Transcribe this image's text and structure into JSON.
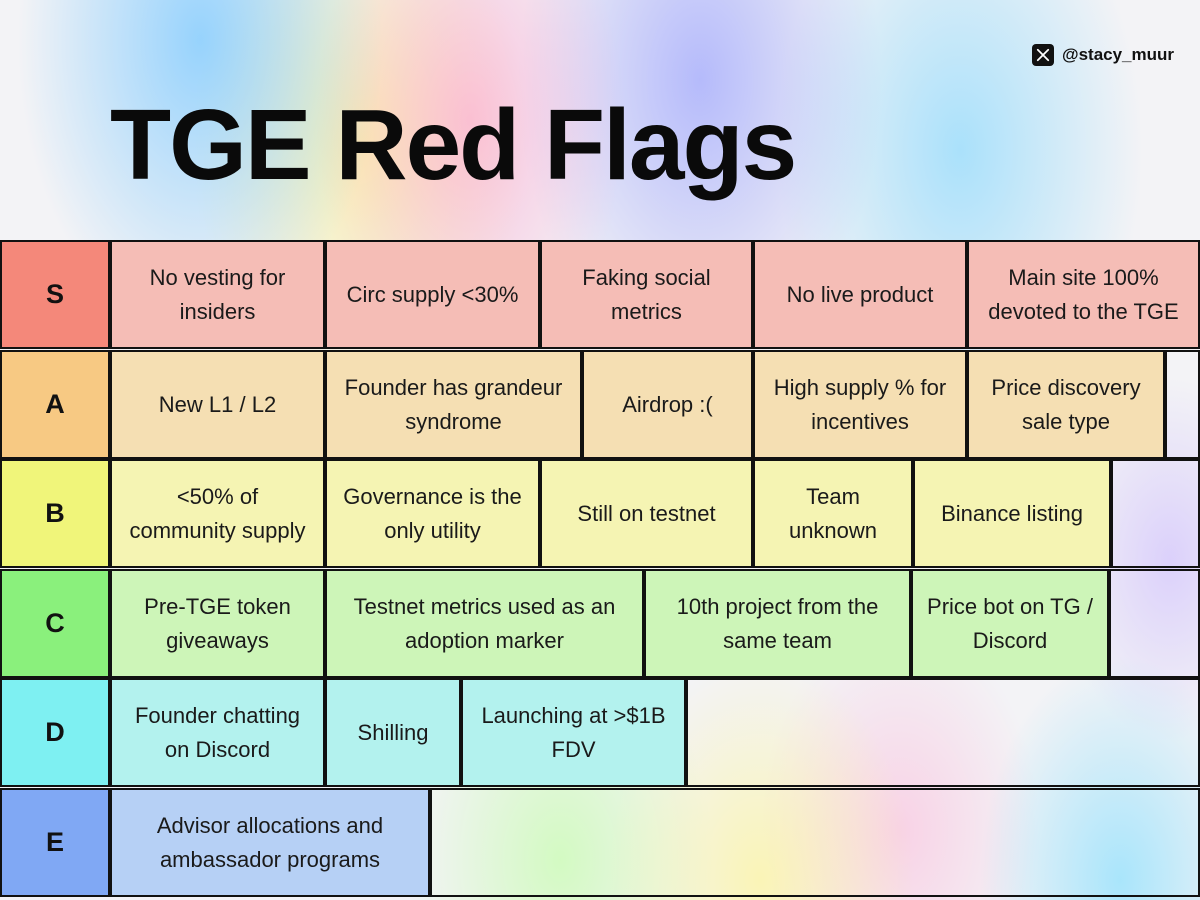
{
  "handle": {
    "icon": "x-logo-icon",
    "text": "@stacy_muur"
  },
  "title": "TGE Red Flags",
  "tiers": [
    {
      "label": "S",
      "label_color": "#f4887a",
      "cell_color": "#f5bdb6",
      "items": [
        "No vesting for insiders",
        "Circ supply <30%",
        "Faking social metrics",
        "No live product",
        "Main site 100% devoted to the TGE"
      ]
    },
    {
      "label": "A",
      "label_color": "#f7c983",
      "cell_color": "#f5dfb3",
      "items": [
        "New L1 / L2",
        "Founder has grandeur syndrome",
        "Airdrop :(",
        "High supply % for incentives",
        "Price discovery sale type"
      ]
    },
    {
      "label": "B",
      "label_color": "#f0f57a",
      "cell_color": "#f5f4b3",
      "items": [
        "<50% of community supply",
        "Governance is the only utility",
        "Still on testnet",
        "Team unknown",
        "Binance listing"
      ]
    },
    {
      "label": "C",
      "label_color": "#8af07c",
      "cell_color": "#cdf5b8",
      "items": [
        "Pre-TGE token giveaways",
        "Testnet metrics used as an adoption marker",
        "10th project from the same team",
        "Price bot on TG / Discord"
      ]
    },
    {
      "label": "D",
      "label_color": "#7ef0f2",
      "cell_color": "#b3f2ee",
      "items": [
        "Founder chatting on Discord",
        "Shilling",
        "Launching at >$1B FDV"
      ]
    },
    {
      "label": "E",
      "label_color": "#80a8f4",
      "cell_color": "#b6d0f5",
      "items": [
        "Advisor allocations and ambassador programs"
      ]
    }
  ]
}
